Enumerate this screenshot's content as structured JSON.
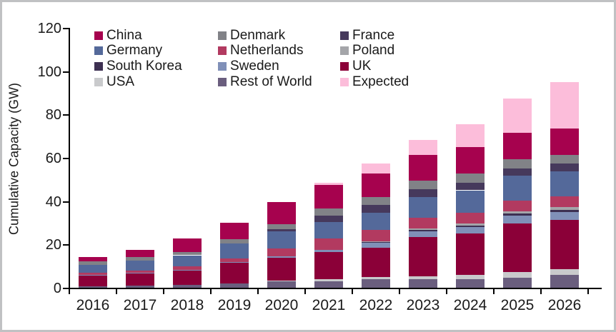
{
  "chart_data": {
    "type": "bar",
    "stacked": true,
    "title": "",
    "xlabel": "",
    "ylabel": "Cumulative Capacity (GW)",
    "ylim": [
      0,
      120
    ],
    "yticks": [
      0,
      20,
      40,
      60,
      80,
      100,
      120
    ],
    "grid": false,
    "legend_position": "top-inside",
    "categories": [
      "2016",
      "2017",
      "2018",
      "2019",
      "2020",
      "2021",
      "2022",
      "2023",
      "2024",
      "2025",
      "2026"
    ],
    "legend_order": [
      "China",
      "Denmark",
      "France",
      "Germany",
      "Netherlands",
      "Poland",
      "South Korea",
      "Sweden",
      "UK",
      "USA",
      "Rest of World",
      "Expected"
    ],
    "stack_order_note": "series listed bottom-to-top of each bar",
    "series": [
      {
        "name": "Rest of World",
        "color": "#6A5E7E",
        "values": [
          0.8,
          1.1,
          1.2,
          2.0,
          3.0,
          3.1,
          4.0,
          4.0,
          4.0,
          4.7,
          5.8
        ]
      },
      {
        "name": "USA",
        "color": "#C9CACC",
        "values": [
          0,
          0,
          0,
          0,
          0.3,
          0.8,
          1.0,
          1.4,
          1.8,
          2.5,
          2.8
        ]
      },
      {
        "name": "UK",
        "color": "#8B0038",
        "values": [
          5.0,
          5.6,
          7.0,
          9.8,
          10.5,
          12.6,
          13.3,
          18.0,
          19.2,
          22.6,
          22.6
        ]
      },
      {
        "name": "Sweden",
        "color": "#8090B8",
        "values": [
          0.2,
          0.2,
          0.2,
          0.2,
          0.8,
          0.9,
          2.6,
          2.6,
          2.9,
          3.6,
          3.8
        ]
      },
      {
        "name": "South Korea",
        "color": "#3D3052",
        "values": [
          0,
          0,
          0,
          0,
          0,
          0,
          0.3,
          0.7,
          0.8,
          0.9,
          1.0
        ]
      },
      {
        "name": "Poland",
        "color": "#A4A5A9",
        "values": [
          0,
          0,
          0,
          0,
          0,
          0,
          0.3,
          0.6,
          0.9,
          1.1,
          1.2
        ]
      },
      {
        "name": "Netherlands",
        "color": "#B23A60",
        "values": [
          0.9,
          1.1,
          1.4,
          1.6,
          3.6,
          5.3,
          5.3,
          4.9,
          4.9,
          4.9,
          4.9
        ]
      },
      {
        "name": "Germany",
        "color": "#54699A",
        "values": [
          3.8,
          4.6,
          5.2,
          6.9,
          8.0,
          7.7,
          7.7,
          9.6,
          10.5,
          11.3,
          11.5
        ]
      },
      {
        "name": "France",
        "color": "#46395C",
        "values": [
          0,
          0,
          0,
          0,
          0.9,
          3.0,
          3.6,
          3.6,
          3.6,
          3.6,
          3.6
        ]
      },
      {
        "name": "Denmark",
        "color": "#818287",
        "values": [
          1.4,
          1.5,
          1.6,
          1.8,
          2.2,
          3.3,
          3.9,
          3.9,
          4.0,
          4.0,
          4.0
        ]
      },
      {
        "name": "China",
        "color": "#A6024E",
        "values": [
          2.0,
          3.5,
          6.2,
          7.6,
          10.2,
          10.7,
          10.8,
          12.0,
          12.3,
          12.3,
          12.3
        ]
      },
      {
        "name": "Expected",
        "color": "#FCBDDA",
        "values": [
          0,
          0,
          0,
          0,
          0,
          1.0,
          4.4,
          7.0,
          10.5,
          16.0,
          21.5
        ]
      }
    ],
    "totals": [
      14.1,
      17.6,
      22.8,
      29.9,
      39.5,
      48.4,
      57.2,
      68.3,
      75.4,
      87.5,
      95.0
    ]
  }
}
